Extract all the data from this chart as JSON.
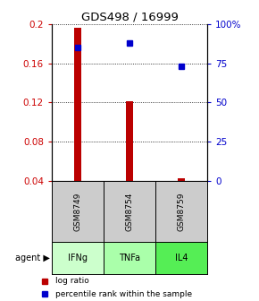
{
  "title": "GDS498 / 16999",
  "samples": [
    "GSM8749",
    "GSM8754",
    "GSM8759"
  ],
  "agents": [
    "IFNg",
    "TNFa",
    "IL4"
  ],
  "log_ratio": [
    0.196,
    0.121,
    0.042
  ],
  "percentile_rank": [
    85,
    88,
    73
  ],
  "bar_color": "#bb0000",
  "dot_color": "#0000cc",
  "ylim_left": [
    0.04,
    0.2
  ],
  "ylim_right": [
    0,
    100
  ],
  "yticks_left": [
    0.04,
    0.08,
    0.12,
    0.16,
    0.2
  ],
  "ytick_labels_left": [
    "0.04",
    "0.08",
    "0.12",
    "0.16",
    "0.2"
  ],
  "yticks_right": [
    0,
    25,
    50,
    75,
    100
  ],
  "ytick_labels_right": [
    "0",
    "25",
    "50",
    "75",
    "100%"
  ],
  "agent_colors": [
    "#ccffcc",
    "#aaffaa",
    "#55ee55"
  ],
  "sample_box_color": "#cccccc",
  "background_color": "#ffffff",
  "agent_label": "agent"
}
